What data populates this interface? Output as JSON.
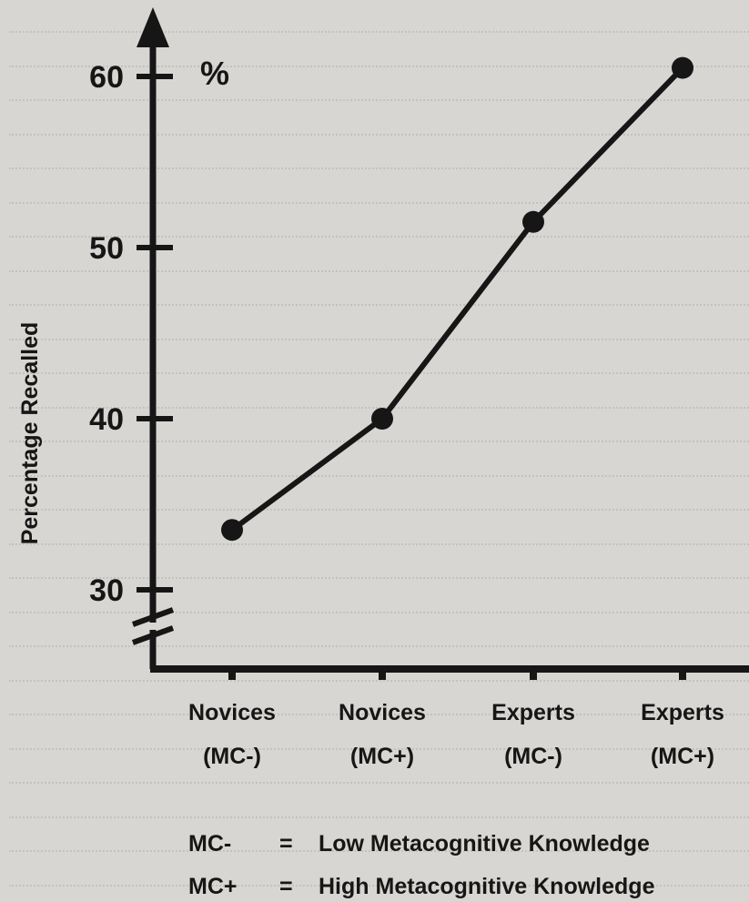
{
  "chart_data": {
    "type": "line",
    "categories": [
      {
        "line1": "Novices",
        "line2": "(MC-)"
      },
      {
        "line1": "Novices",
        "line2": "(MC+)"
      },
      {
        "line1": "Experts",
        "line2": "(MC-)"
      },
      {
        "line1": "Experts",
        "line2": "(MC+)"
      }
    ],
    "values": [
      33.5,
      40,
      51.5,
      60.5
    ],
    "ylabel": "Percentage Recalled",
    "yunit": "%",
    "yticks": [
      30,
      40,
      50,
      60
    ],
    "ylim": [
      30,
      62
    ],
    "axis_break": true,
    "grid": false,
    "legend": [
      {
        "key": "MC-",
        "eq": "=",
        "desc": "Low Metacognitive Knowledge"
      },
      {
        "key": "MC+",
        "eq": "=",
        "desc": "High Metacognitive Knowledge"
      }
    ]
  }
}
